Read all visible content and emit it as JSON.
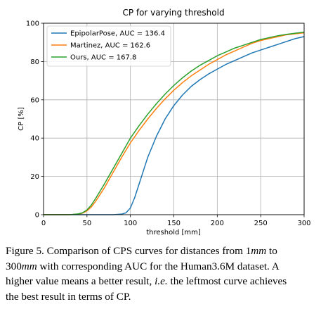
{
  "chart_data": {
    "type": "line",
    "title": "CP for varying threshold",
    "xlabel": "threshold [mm]",
    "ylabel": "CP [%]",
    "xlim": [
      0,
      300
    ],
    "ylim": [
      0,
      100
    ],
    "xticks": [
      "0",
      "50",
      "100",
      "150",
      "200",
      "250",
      "300"
    ],
    "yticks": [
      "0",
      "20",
      "40",
      "60",
      "80",
      "100"
    ],
    "grid": true,
    "legend_position": "top-left",
    "series": [
      {
        "name": "EpipolarPose, AUC = 136.4",
        "color": "#1f77b4",
        "x": [
          0,
          80,
          90,
          95,
          100,
          105,
          110,
          115,
          120,
          130,
          140,
          150,
          160,
          170,
          180,
          190,
          200,
          210,
          220,
          230,
          240,
          250,
          260,
          270,
          280,
          290,
          300
        ],
        "y": [
          0,
          0,
          0.3,
          1,
          3.5,
          9,
          16,
          23,
          30,
          41,
          50,
          57,
          62.5,
          67,
          70.5,
          73.5,
          76,
          78.5,
          80.5,
          82.5,
          84.5,
          86,
          87.5,
          89,
          90.5,
          92,
          93
        ]
      },
      {
        "name": "Martinez, AUC = 162.6",
        "color": "#ff7f0e",
        "x": [
          0,
          30,
          40,
          45,
          50,
          55,
          60,
          70,
          80,
          90,
          100,
          110,
          120,
          130,
          140,
          150,
          160,
          170,
          180,
          190,
          200,
          210,
          220,
          230,
          240,
          250,
          260,
          270,
          280,
          290,
          300
        ],
        "y": [
          0,
          0,
          0.3,
          0.8,
          2,
          4,
          7,
          14,
          22,
          30,
          37.5,
          44,
          50,
          55.5,
          60.5,
          65,
          69,
          72.5,
          75.5,
          78.5,
          81,
          83.5,
          85.5,
          87.5,
          89.5,
          91,
          92,
          93,
          94,
          94.5,
          95
        ]
      },
      {
        "name": "Ours, AUC = 167.8",
        "color": "#2ca02c",
        "x": [
          0,
          30,
          40,
          45,
          50,
          55,
          60,
          70,
          80,
          90,
          100,
          110,
          120,
          130,
          140,
          150,
          160,
          170,
          180,
          190,
          200,
          210,
          220,
          230,
          240,
          250,
          260,
          270,
          280,
          290,
          300
        ],
        "y": [
          0,
          0,
          0.4,
          1,
          2.5,
          5,
          8.5,
          16,
          24,
          32,
          40,
          46.5,
          52.5,
          58,
          63,
          67.5,
          71.5,
          75,
          78,
          80.5,
          83,
          85,
          87,
          88.5,
          90,
          91.5,
          92.5,
          93.5,
          94.2,
          94.8,
          95.3
        ]
      }
    ]
  },
  "caption": {
    "l1a": "Figure 5. Comparison of CPS curves for distances from ",
    "l1b": "1",
    "l1c": "mm",
    "l1d": " to",
    "l2a": "300",
    "l2b": "mm",
    "l2c": " with corresponding AUC for the Human3.6M dataset. A",
    "l3a": "higher value means a better result, ",
    "l3b": "i.e.",
    "l3c": " the leftmost curve achieves",
    "l4": "the best result in terms of CP."
  }
}
